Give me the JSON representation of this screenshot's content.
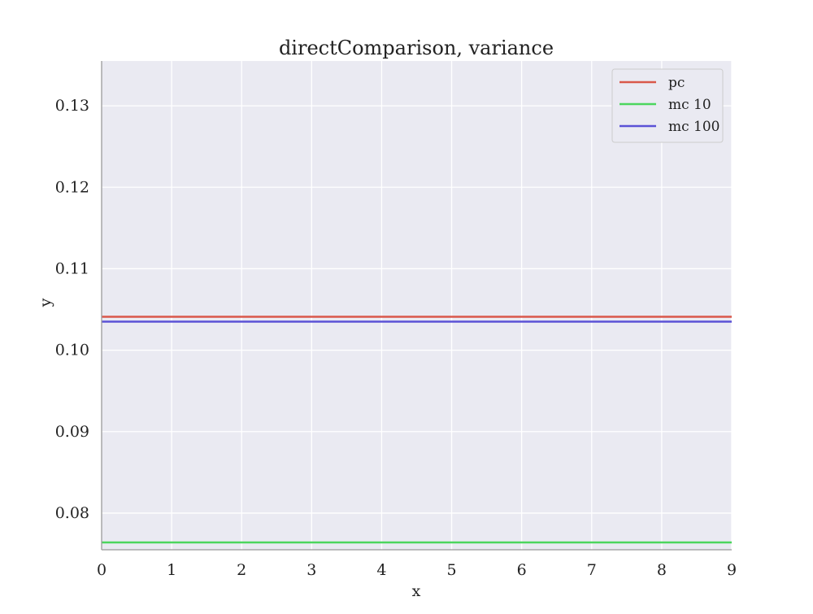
{
  "chart_data": {
    "type": "line",
    "title": "directComparison, variance",
    "xlabel": "x",
    "ylabel": "y",
    "xlim": [
      0,
      9
    ],
    "ylim": [
      0.0755,
      0.1355
    ],
    "xticks": [
      0,
      1,
      2,
      3,
      4,
      5,
      6,
      7,
      8,
      9
    ],
    "xtick_labels": [
      "0",
      "1",
      "2",
      "3",
      "4",
      "5",
      "6",
      "7",
      "8",
      "9"
    ],
    "yticks": [
      0.08,
      0.09,
      0.1,
      0.11,
      0.12,
      0.13
    ],
    "ytick_labels": [
      "0.08",
      "0.09",
      "0.10",
      "0.11",
      "0.12",
      "0.13"
    ],
    "grid": true,
    "legend_position": "top-right",
    "x": [
      0,
      1,
      2,
      3,
      4,
      5,
      6,
      7,
      8,
      9
    ],
    "series": [
      {
        "name": "pc",
        "color": "#d9584a",
        "values": [
          0.1041,
          0.1041,
          0.1041,
          0.1041,
          0.1041,
          0.1041,
          0.1041,
          0.1041,
          0.1041,
          0.1041
        ]
      },
      {
        "name": "mc 10",
        "color": "#4cd65e",
        "values": [
          0.0764,
          0.0764,
          0.0764,
          0.0764,
          0.0764,
          0.0764,
          0.0764,
          0.0764,
          0.0764,
          0.0764
        ]
      },
      {
        "name": "mc 100",
        "color": "#5b52d6",
        "values": [
          0.1035,
          0.1035,
          0.1035,
          0.1035,
          0.1035,
          0.1035,
          0.1035,
          0.1035,
          0.1035,
          0.1035
        ]
      }
    ]
  }
}
